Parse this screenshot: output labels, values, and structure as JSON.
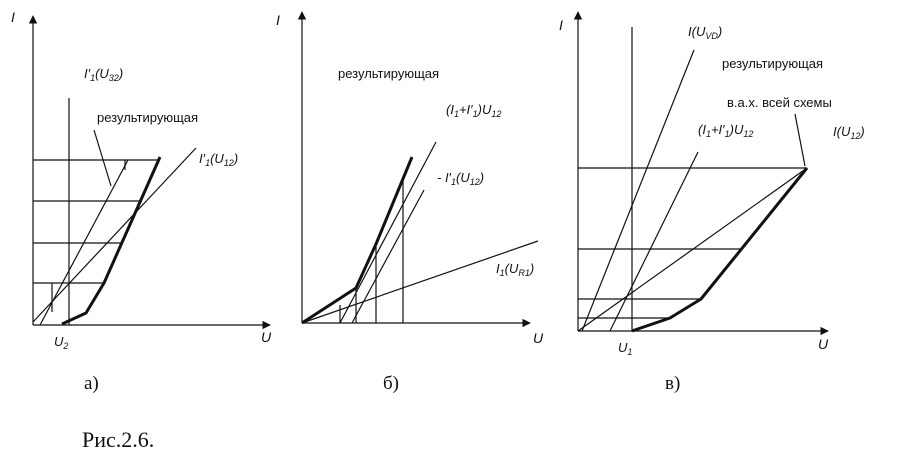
{
  "axes": {
    "current": "I",
    "voltage": "U"
  },
  "panel_a": {
    "caption": "а)",
    "ticks": {
      "u2_base": "U",
      "u2_sub": "2"
    },
    "labels": {
      "i32_base": "I′",
      "i32_sub1": "1",
      "i32_mid": "(U",
      "i32_sub2": "32",
      "i32_end": ")",
      "resulting": "результирующая",
      "i12_base": "I′",
      "i12_sub1": "1",
      "i12_mid": "(U",
      "i12_sub2": "12",
      "i12_end": ")"
    }
  },
  "panel_b": {
    "caption": "б)",
    "labels": {
      "resulting": "результирующая",
      "sum_open": "(I",
      "sum_sub1": "1",
      "sum_plus": "+I′",
      "sum_sub2": "1",
      "sum_close": ")U",
      "sum_sub3": "12",
      "neg_base": "- I′",
      "neg_sub1": "1",
      "neg_mid": "(U",
      "neg_sub2": "12",
      "neg_end": ")",
      "ir1_base": "I",
      "ir1_sub1": "1",
      "ir1_mid": "(U",
      "ir1_sub2": "R1",
      "ir1_end": ")"
    }
  },
  "panel_c": {
    "caption": "в)",
    "ticks": {
      "u1_base": "U",
      "u1_sub": "1"
    },
    "labels": {
      "ivd_base": "I(U",
      "ivd_sub": "VD",
      "ivd_end": ")",
      "resulting": "результирующая",
      "vax": "в.а.х. всей схемы",
      "sum_open": "(I",
      "sum_sub1": "1",
      "sum_plus": "+I′",
      "sum_sub2": "1",
      "sum_close": ")U",
      "sum_sub3": "12",
      "i12_base": "I(U",
      "i12_sub": "12",
      "i12_end": ")"
    }
  },
  "figure_caption": "Рис.2.6."
}
